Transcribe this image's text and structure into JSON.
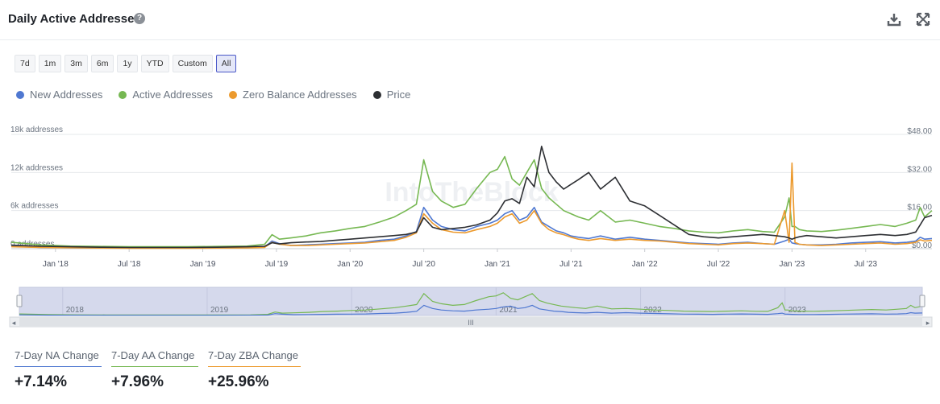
{
  "header": {
    "title": "Daily Active Addresses"
  },
  "ranges": [
    "7d",
    "1m",
    "3m",
    "6m",
    "1y",
    "YTD",
    "Custom",
    "All"
  ],
  "active_range": "All",
  "legend": [
    {
      "label": "New Addresses",
      "color": "#4f78d1"
    },
    {
      "label": "Active Addresses",
      "color": "#76b852"
    },
    {
      "label": "Zero Balance Addresses",
      "color": "#ec9a2e"
    },
    {
      "label": "Price",
      "color": "#2d2f33"
    }
  ],
  "watermark": "IntoTheBlock",
  "stats": [
    {
      "label": "7-Day NA Change",
      "value": "+7.14%",
      "color": "#4f78d1"
    },
    {
      "label": "7-Day AA Change",
      "value": "+7.96%",
      "color": "#76b852"
    },
    {
      "label": "7-Day ZBA Change",
      "value": "+25.96%",
      "color": "#ec9a2e"
    }
  ],
  "chart_data": {
    "type": "line",
    "title": "Daily Active Addresses",
    "x_tick_labels": [
      "Jan '18",
      "Jul '18",
      "Jan '19",
      "Jul '19",
      "Jan '20",
      "Jul '20",
      "Jan '21",
      "Jul '21",
      "Jan '22",
      "Jul '22",
      "Jan '23",
      "Jul '23"
    ],
    "x_ticks": [
      2018.0,
      2018.5,
      2019.0,
      2019.5,
      2020.0,
      2020.5,
      2021.0,
      2021.5,
      2022.0,
      2022.5,
      2023.0,
      2023.5
    ],
    "xlim": [
      2017.7,
      2023.95
    ],
    "y_left": {
      "label": "addresses",
      "ticks": [
        0,
        6000,
        12000,
        18000
      ],
      "tick_labels": [
        "0 addresses",
        "6k addresses",
        "12k addresses",
        "18k addresses"
      ],
      "lim": [
        0,
        18000
      ]
    },
    "y_right": {
      "label": "Price",
      "ticks": [
        0,
        16,
        32,
        48
      ],
      "tick_labels": [
        "$0.00",
        "$16.00",
        "$32.00",
        "$48.00"
      ],
      "lim": [
        0,
        48
      ]
    },
    "navigator_year_labels": [
      "2018",
      "2019",
      "2020",
      "2021",
      "2022",
      "2023"
    ],
    "navigator_years": [
      2018,
      2019,
      2020,
      2021,
      2022,
      2023
    ],
    "x": [
      2017.7,
      2017.9,
      2018.1,
      2018.3,
      2018.5,
      2018.7,
      2018.9,
      2019.1,
      2019.3,
      2019.42,
      2019.47,
      2019.52,
      2019.6,
      2019.7,
      2019.8,
      2019.9,
      2020.0,
      2020.1,
      2020.2,
      2020.3,
      2020.38,
      2020.45,
      2020.5,
      2020.56,
      2020.62,
      2020.7,
      2020.78,
      2020.86,
      2020.95,
      2021.0,
      2021.05,
      2021.1,
      2021.15,
      2021.2,
      2021.25,
      2021.3,
      2021.35,
      2021.4,
      2021.45,
      2021.5,
      2021.55,
      2021.62,
      2021.7,
      2021.8,
      2021.9,
      2022.0,
      2022.1,
      2022.2,
      2022.3,
      2022.4,
      2022.5,
      2022.6,
      2022.7,
      2022.8,
      2022.88,
      2022.95,
      2022.98,
      2023.0,
      2023.02,
      2023.05,
      2023.1,
      2023.2,
      2023.3,
      2023.4,
      2023.5,
      2023.6,
      2023.7,
      2023.78,
      2023.84,
      2023.87,
      2023.9,
      2023.95
    ],
    "series": [
      {
        "name": "New Addresses",
        "color": "#4f78d1",
        "values": [
          400,
          200,
          150,
          120,
          100,
          100,
          100,
          120,
          150,
          250,
          1200,
          800,
          500,
          600,
          700,
          800,
          900,
          1000,
          1300,
          1500,
          2000,
          2700,
          6500,
          4500,
          3500,
          3000,
          2800,
          3500,
          4000,
          4500,
          5500,
          6000,
          4500,
          5000,
          6500,
          4200,
          3500,
          2800,
          2500,
          2000,
          1800,
          1600,
          2000,
          1500,
          1800,
          1500,
          1300,
          1100,
          900,
          800,
          700,
          900,
          1000,
          800,
          700,
          1200,
          1500,
          900,
          800,
          700,
          600,
          600,
          700,
          900,
          1000,
          1100,
          900,
          1000,
          1200,
          1800,
          1500,
          1600
        ]
      },
      {
        "name": "Active Addresses",
        "color": "#76b852",
        "values": [
          1000,
          600,
          400,
          350,
          300,
          300,
          300,
          350,
          400,
          700,
          2200,
          1500,
          1700,
          2000,
          2500,
          2800,
          3200,
          3500,
          4200,
          5000,
          6000,
          7000,
          14000,
          9000,
          7500,
          6500,
          7000,
          9500,
          12000,
          12500,
          14500,
          11000,
          10000,
          12000,
          14000,
          9500,
          8000,
          7000,
          6000,
          5500,
          5000,
          4500,
          6000,
          4200,
          4500,
          4000,
          3500,
          3200,
          2800,
          2600,
          2500,
          2800,
          3000,
          2700,
          2600,
          5000,
          8000,
          3500,
          3500,
          3000,
          2800,
          2700,
          2900,
          3200,
          3500,
          3800,
          3500,
          4000,
          4500,
          6500,
          5000,
          6000
        ]
      },
      {
        "name": "Zero Balance Addresses",
        "color": "#ec9a2e",
        "values": [
          300,
          200,
          150,
          100,
          80,
          80,
          80,
          100,
          120,
          200,
          1000,
          700,
          500,
          500,
          600,
          700,
          800,
          900,
          1100,
          1300,
          1800,
          2500,
          5500,
          4000,
          3000,
          2600,
          2500,
          3000,
          3500,
          4000,
          5000,
          5500,
          4000,
          4500,
          6000,
          4000,
          3000,
          2500,
          2200,
          1800,
          1500,
          1300,
          1600,
          1300,
          1500,
          1300,
          1200,
          1000,
          800,
          700,
          600,
          800,
          900,
          800,
          700,
          6000,
          1000,
          13500,
          1000,
          700,
          600,
          500,
          600,
          700,
          800,
          900,
          700,
          800,
          1000,
          1400,
          1200,
          1300
        ]
      },
      {
        "name": "Price",
        "color": "#2d2f33",
        "axis": "right",
        "values": [
          1.5,
          1.0,
          0.8,
          0.6,
          0.5,
          0.5,
          0.5,
          0.6,
          0.8,
          1.0,
          2.5,
          2.0,
          2.5,
          2.8,
          3.0,
          3.5,
          4.0,
          4.5,
          5.0,
          5.5,
          6.0,
          7.0,
          13.0,
          9.0,
          8.0,
          8.5,
          9.0,
          10.0,
          12.0,
          15.0,
          20.0,
          21.0,
          19.0,
          30.0,
          26.0,
          43.0,
          32.0,
          28.0,
          25.0,
          27.0,
          29.0,
          32.0,
          25.0,
          30.0,
          20.0,
          18.0,
          14.0,
          10.0,
          6.0,
          5.0,
          4.5,
          5.0,
          5.5,
          6.0,
          5.5,
          5.0,
          4.5,
          4.0,
          4.5,
          5.0,
          5.5,
          5.0,
          4.5,
          5.0,
          5.5,
          6.0,
          5.5,
          6.0,
          7.0,
          10.0,
          13.0,
          14.0
        ]
      }
    ]
  }
}
